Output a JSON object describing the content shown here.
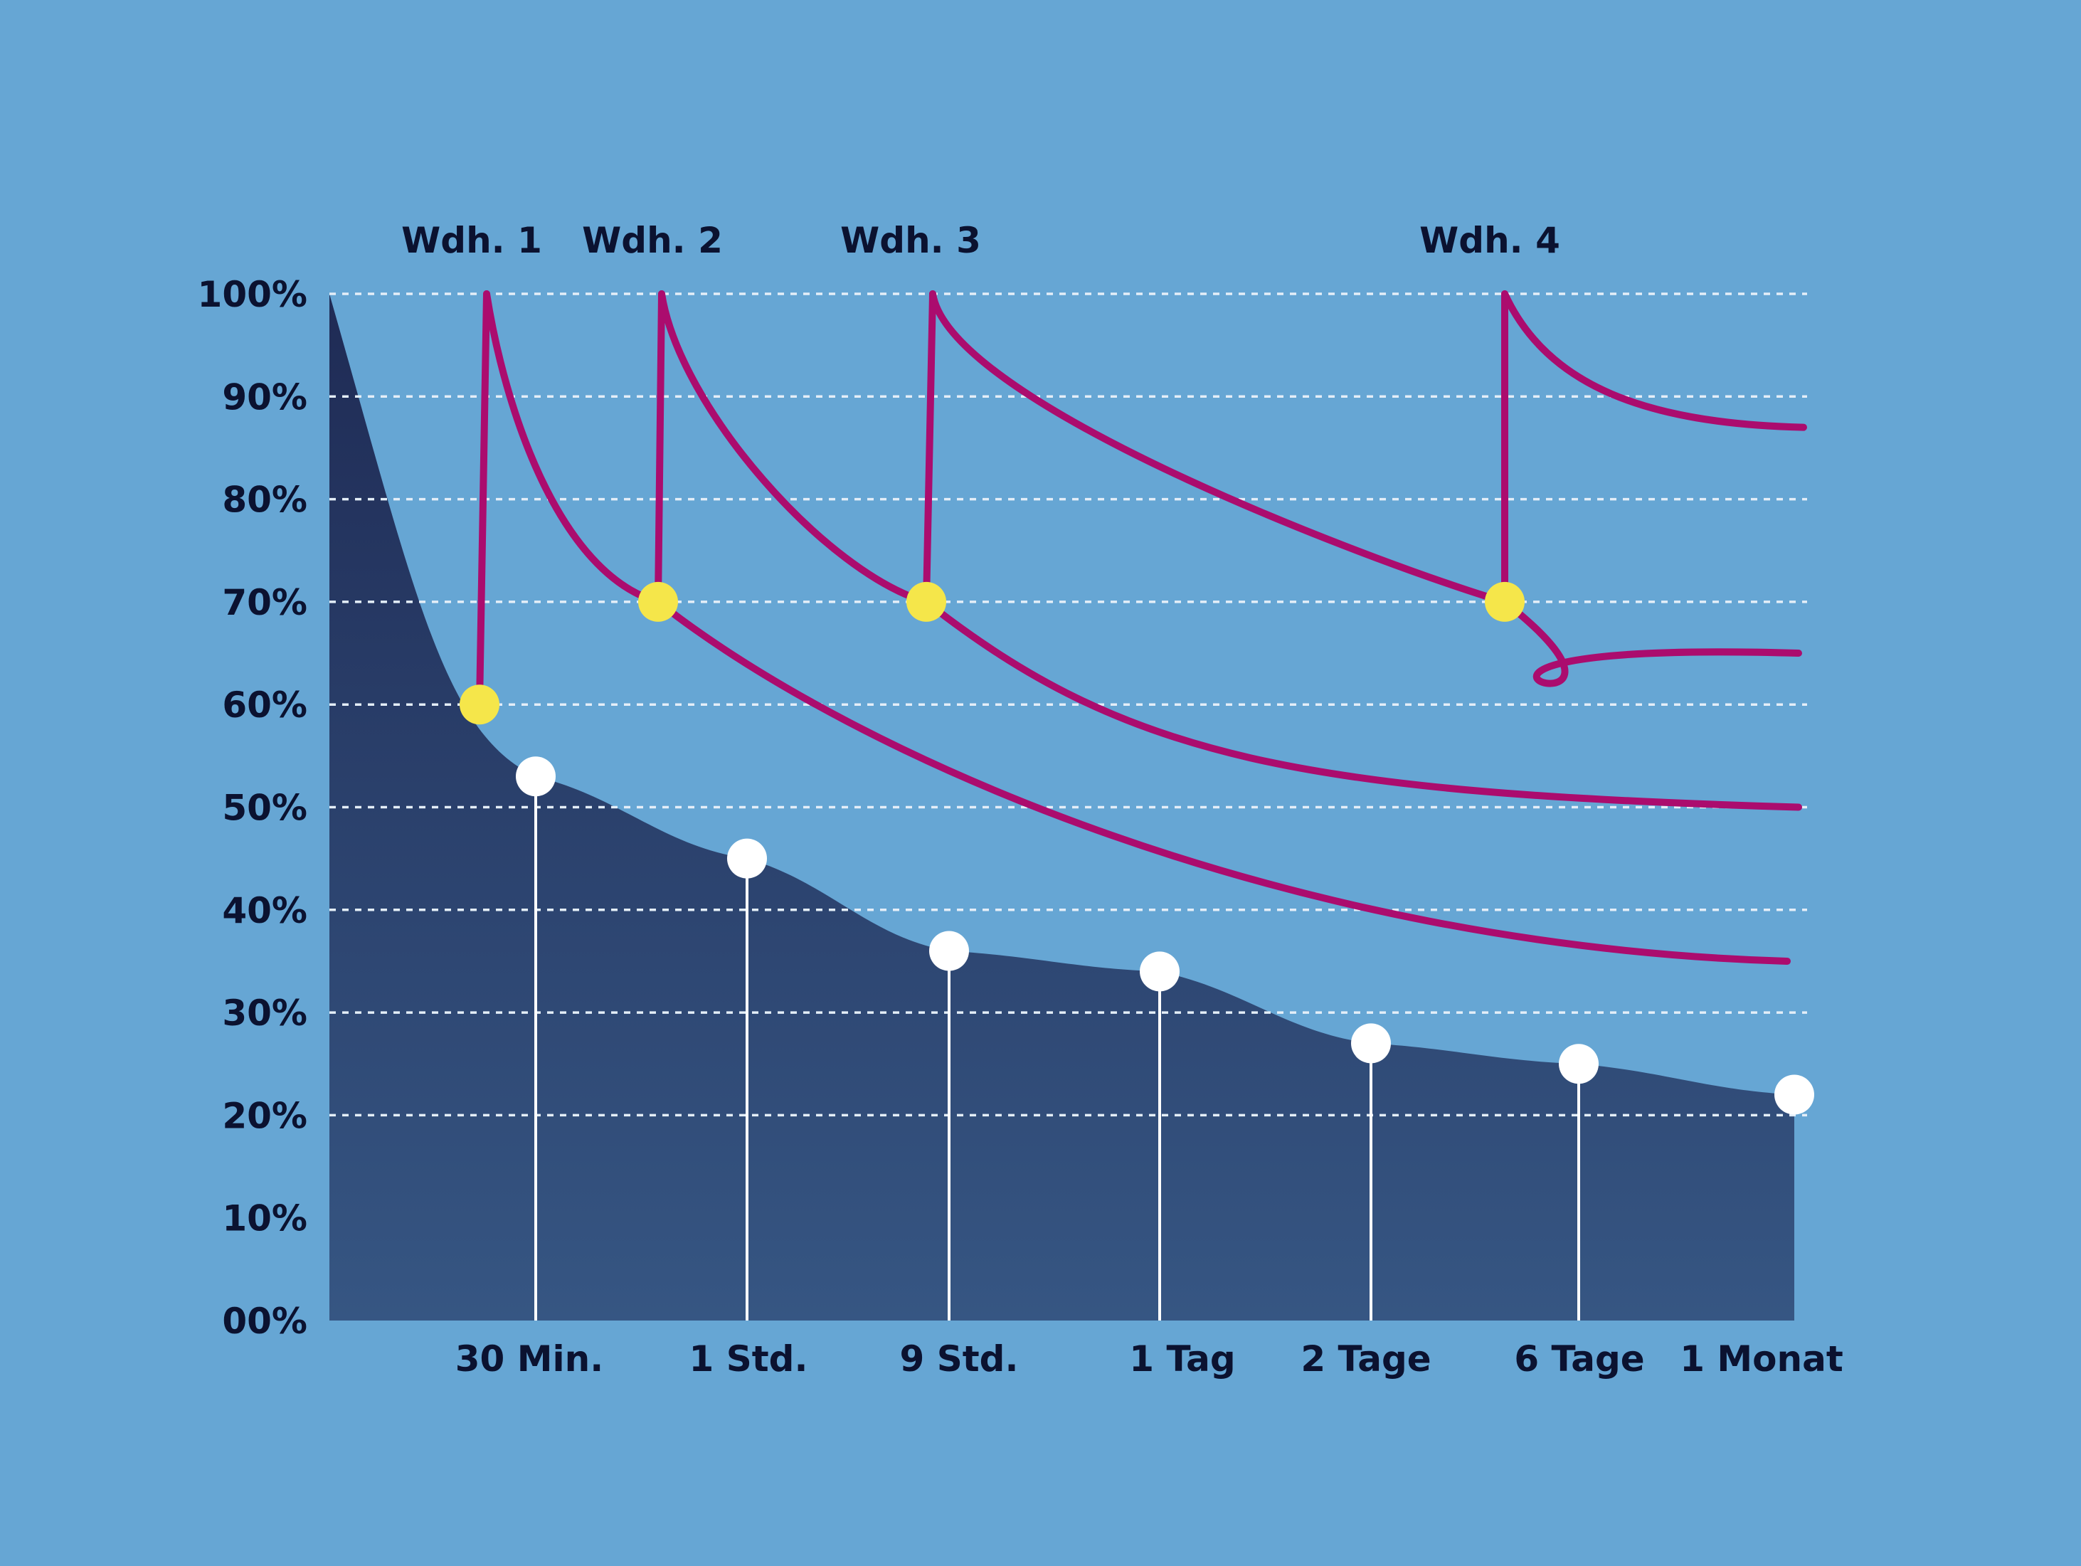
{
  "colors": {
    "background": "#66a6d4",
    "area_top": "#1f2b55",
    "area_bottom": "#365683",
    "review_curve": "#ab0c6e",
    "review_point": "#f5e64a",
    "memory_point": "#ffffff",
    "grid": "#e4eef8",
    "text": "#0b1230"
  },
  "chart_data": {
    "type": "area",
    "grid": true,
    "ylim": [
      0,
      100
    ],
    "y_ticks": [
      "00%",
      "10%",
      "20%",
      "30%",
      "40%",
      "50%",
      "60%",
      "70%",
      "80%",
      "90%",
      "100%"
    ],
    "x_labels": [
      "30 Min.",
      "1 Std.",
      "9 Std.",
      "1 Tag",
      "2 Tage",
      "6 Tage",
      "1 Monat"
    ],
    "forgetting_curve": {
      "x": [
        0,
        0.5,
        1,
        9,
        24,
        48,
        144,
        720
      ],
      "values": [
        100,
        53,
        45,
        36,
        34,
        27,
        25,
        22
      ]
    },
    "review_points": [
      {
        "label": "Wdh. 1",
        "value_before": 60,
        "value_after": 100
      },
      {
        "label": "Wdh. 2",
        "value_before": 70,
        "value_after": 100
      },
      {
        "label": "Wdh. 3",
        "value_before": 70,
        "value_after": 100
      },
      {
        "label": "Wdh. 4",
        "value_before": 70,
        "value_after": 100
      }
    ],
    "review_curves_end_values": [
      35,
      50,
      65,
      87
    ]
  }
}
